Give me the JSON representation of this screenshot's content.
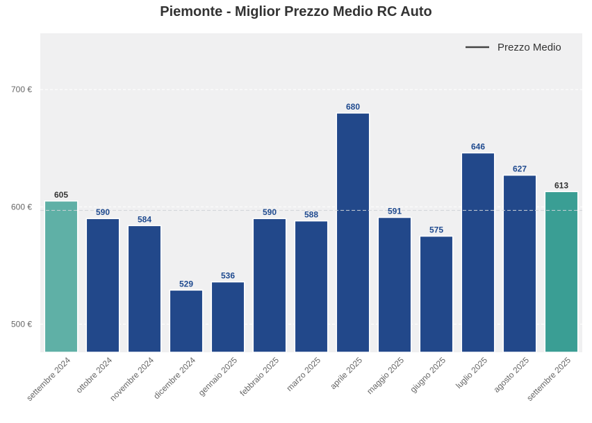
{
  "chart_data": {
    "type": "bar",
    "title": "Piemonte - Miglior Prezzo Medio RC Auto",
    "xlabel": "",
    "ylabel": "",
    "ylim": [
      476,
      748
    ],
    "yticks": [
      500,
      600,
      700
    ],
    "ytick_labels": [
      "500 €",
      "600 €",
      "700 €"
    ],
    "categories": [
      "settembre 2024",
      "ottobre 2024",
      "novembre 2024",
      "dicembre 2024",
      "gennaio 2025",
      "febbraio 2025",
      "marzo 2025",
      "aprile 2025",
      "maggio 2025",
      "giugno 2025",
      "luglio 2025",
      "agosto 2025",
      "settembre 2025"
    ],
    "values": [
      605,
      590,
      584,
      529,
      536,
      590,
      588,
      680,
      591,
      575,
      646,
      627,
      613
    ],
    "value_labels": [
      "605",
      "590",
      "584",
      "529",
      "536",
      "590",
      "588",
      "680",
      "591",
      "575",
      "646",
      "627",
      "613"
    ],
    "bar_colors": [
      "#5fb0a6",
      "#22488a",
      "#22488a",
      "#22488a",
      "#22488a",
      "#22488a",
      "#22488a",
      "#22488a",
      "#22488a",
      "#22488a",
      "#22488a",
      "#22488a",
      "#3a9e94"
    ],
    "label_colors": [
      "#333333",
      "#1f4a8f",
      "#1f4a8f",
      "#1f4a8f",
      "#1f4a8f",
      "#1f4a8f",
      "#1f4a8f",
      "#1f4a8f",
      "#1f4a8f",
      "#1f4a8f",
      "#1f4a8f",
      "#1f4a8f",
      "#333333"
    ],
    "reference_line": {
      "name": "Prezzo Medio",
      "value": 597
    },
    "legend": {
      "placement": "top-right",
      "entries": [
        "Prezzo Medio"
      ]
    },
    "grid": true,
    "colors": {
      "background": "#f0f0f1",
      "grid": "#ffffff",
      "reference": "#cfd3d8",
      "legend_line": "#444444"
    }
  }
}
